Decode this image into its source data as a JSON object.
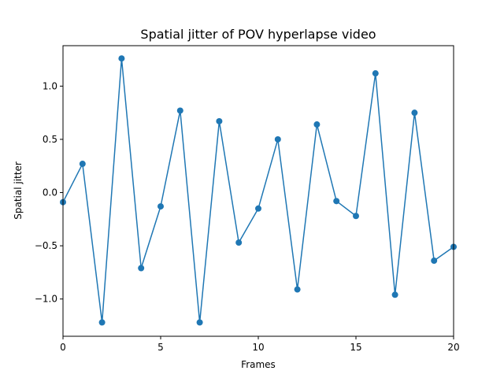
{
  "chart_data": {
    "type": "line",
    "title": "Spatial jitter of POV hyperlapse video",
    "xlabel": "Frames",
    "ylabel": "Spatial jitter",
    "xlim": [
      0,
      20
    ],
    "ylim": [
      -1.35,
      1.38
    ],
    "x_ticks": [
      0,
      5,
      10,
      15,
      20
    ],
    "x_tick_labels": [
      "0",
      "5",
      "10",
      "15",
      "20"
    ],
    "y_ticks": [
      -1.0,
      -0.5,
      0.0,
      0.5,
      1.0
    ],
    "y_tick_labels": [
      "−1.0",
      "−0.5",
      "0.0",
      "0.5",
      "1.0"
    ],
    "grid": false,
    "marker": "circle",
    "color": "#1f77b4",
    "series": [
      {
        "x": [
          0,
          1,
          2,
          3,
          4,
          5,
          6,
          7,
          8,
          9,
          10,
          11,
          12,
          13,
          14,
          15,
          16,
          17,
          18,
          19,
          20
        ],
        "values": [
          -0.09,
          0.27,
          -1.22,
          1.26,
          -0.71,
          -0.13,
          0.77,
          -1.22,
          0.67,
          -0.47,
          -0.15,
          0.5,
          -0.91,
          0.64,
          -0.08,
          -0.22,
          1.12,
          -0.96,
          0.75,
          -0.64,
          -0.51
        ]
      }
    ]
  }
}
